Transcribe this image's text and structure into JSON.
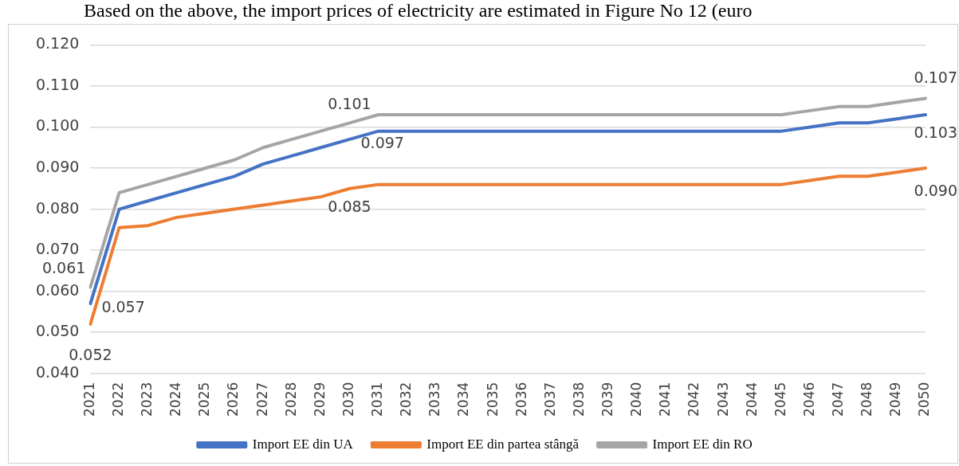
{
  "chart_data": {
    "type": "line",
    "annotations": [
      "Based on the above, the import prices of electricity are estimated in Figure No 12 (euro"
    ],
    "categories": [
      "2021",
      "2022",
      "2023",
      "2024",
      "2025",
      "2026",
      "2027",
      "2028",
      "2029",
      "2030",
      "2031",
      "2032",
      "2033",
      "2034",
      "2035",
      "2036",
      "2037",
      "2038",
      "2039",
      "2040",
      "2041",
      "2042",
      "2043",
      "2044",
      "2045",
      "2046",
      "2047",
      "2048",
      "2049",
      "2050"
    ],
    "series": [
      {
        "name": "Import EE din UA",
        "color": "#4472c4",
        "values": [
          0.057,
          0.08,
          0.082,
          0.084,
          0.086,
          0.088,
          0.091,
          0.093,
          0.095,
          0.097,
          0.099,
          0.099,
          0.099,
          0.099,
          0.099,
          0.099,
          0.099,
          0.099,
          0.099,
          0.099,
          0.099,
          0.099,
          0.099,
          0.099,
          0.099,
          0.1,
          0.101,
          0.101,
          0.102,
          0.103
        ],
        "value_labels": [
          "0.057",
          null,
          null,
          null,
          null,
          null,
          null,
          null,
          null,
          "0.097",
          null,
          null,
          null,
          null,
          null,
          null,
          null,
          null,
          null,
          null,
          null,
          null,
          null,
          null,
          null,
          null,
          null,
          null,
          null,
          "0.103"
        ]
      },
      {
        "name": "Import EE din partea stângă",
        "color": "#ed7d31",
        "values": [
          0.052,
          0.0755,
          0.076,
          0.078,
          0.079,
          0.08,
          0.081,
          0.082,
          0.083,
          0.085,
          0.086,
          0.086,
          0.086,
          0.086,
          0.086,
          0.086,
          0.086,
          0.086,
          0.086,
          0.086,
          0.086,
          0.086,
          0.086,
          0.086,
          0.086,
          0.087,
          0.088,
          0.088,
          0.089,
          0.09
        ],
        "value_labels": [
          "0.052",
          null,
          null,
          null,
          null,
          null,
          null,
          null,
          null,
          "0.085",
          null,
          null,
          null,
          null,
          null,
          null,
          null,
          null,
          null,
          null,
          null,
          null,
          null,
          null,
          null,
          null,
          null,
          null,
          null,
          "0.090"
        ]
      },
      {
        "name": "Import EE din RO",
        "color": "#a5a5a5",
        "values": [
          0.061,
          0.084,
          0.086,
          0.088,
          0.09,
          0.092,
          0.095,
          0.097,
          0.099,
          0.101,
          0.103,
          0.103,
          0.103,
          0.103,
          0.103,
          0.103,
          0.103,
          0.103,
          0.103,
          0.103,
          0.103,
          0.103,
          0.103,
          0.103,
          0.103,
          0.104,
          0.105,
          0.105,
          0.106,
          0.107
        ],
        "value_labels": [
          "0.061",
          null,
          null,
          null,
          null,
          null,
          null,
          null,
          null,
          "0.101",
          null,
          null,
          null,
          null,
          null,
          null,
          null,
          null,
          null,
          null,
          null,
          null,
          null,
          null,
          null,
          null,
          null,
          null,
          null,
          "0.107"
        ]
      }
    ],
    "ylim": [
      0.04,
      0.12
    ],
    "yticks": [
      {
        "value": 0.04,
        "label": "0.040"
      },
      {
        "value": 0.05,
        "label": "0.050"
      },
      {
        "value": 0.06,
        "label": "0.060"
      },
      {
        "value": 0.07,
        "label": "0.070"
      },
      {
        "value": 0.08,
        "label": "0.080"
      },
      {
        "value": 0.09,
        "label": "0.090"
      },
      {
        "value": 0.1,
        "label": "0.100"
      },
      {
        "value": 0.11,
        "label": "0.110"
      },
      {
        "value": 0.12,
        "label": "0.120"
      }
    ],
    "grid": "y",
    "legend": "bottom",
    "marker": "none",
    "line_style": "solid"
  }
}
